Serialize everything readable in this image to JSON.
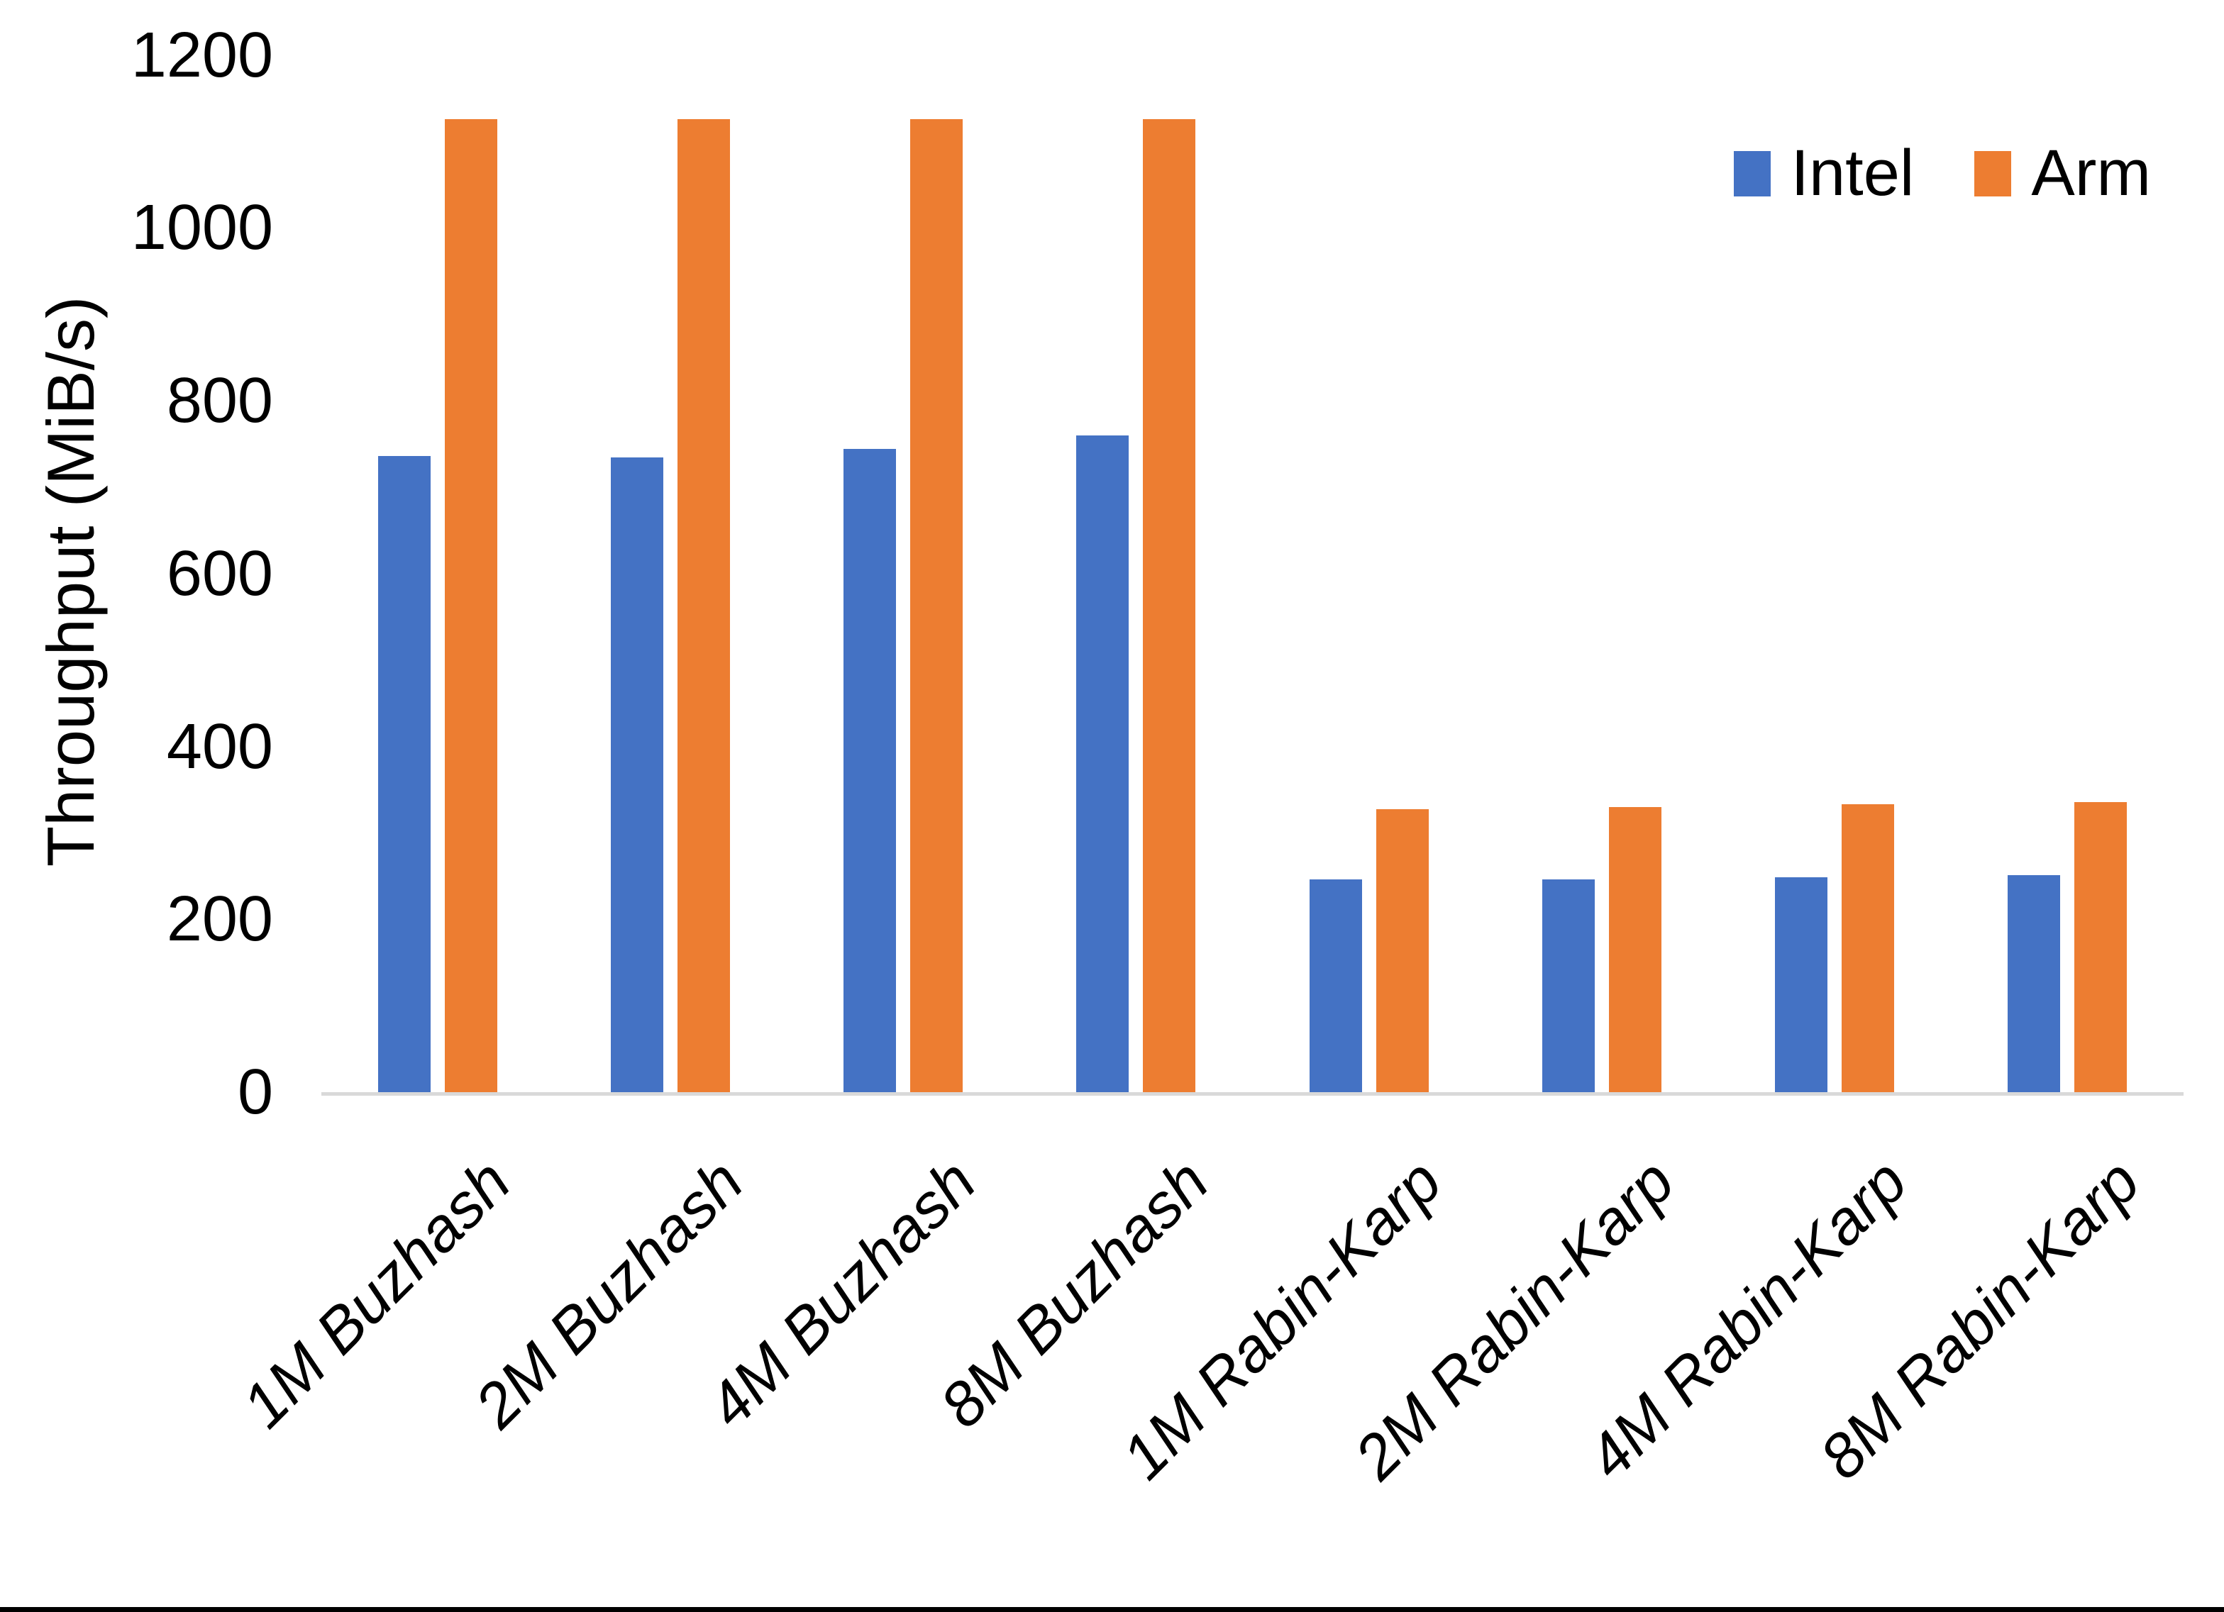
{
  "chart_data": {
    "type": "bar",
    "title": "",
    "xlabel": "",
    "ylabel": "Throughput (MiB/s)",
    "categories": [
      "1M Buzhash",
      "2M Buzhash",
      "4M Buzhash",
      "8M Buzhash",
      "1M Rabin-Karp",
      "2M Rabin-Karp",
      "4M Rabin-Karp",
      "8M Rabin-Karp"
    ],
    "series": [
      {
        "name": "Intel",
        "color": "#4472C4",
        "values": [
          736,
          734,
          744,
          760,
          246,
          246,
          249,
          251
        ]
      },
      {
        "name": "Arm",
        "color": "#ED7D31",
        "values": [
          1126,
          1126,
          1126,
          1126,
          327,
          330,
          333,
          336
        ]
      }
    ],
    "ylim": [
      0,
      1200
    ],
    "ytick_interval": 200,
    "yticks": [
      "0",
      "200",
      "400",
      "600",
      "800",
      "1000",
      "1200"
    ],
    "grid": false,
    "legend_position": "top-right",
    "x_label_rotation_deg": 45,
    "x_label_style": "italic"
  },
  "axis": {
    "line_color": "#D9D9D9",
    "text_color": "#000000"
  },
  "frame": {
    "bottom_border_color": "#000000",
    "background": "#ffffff"
  }
}
